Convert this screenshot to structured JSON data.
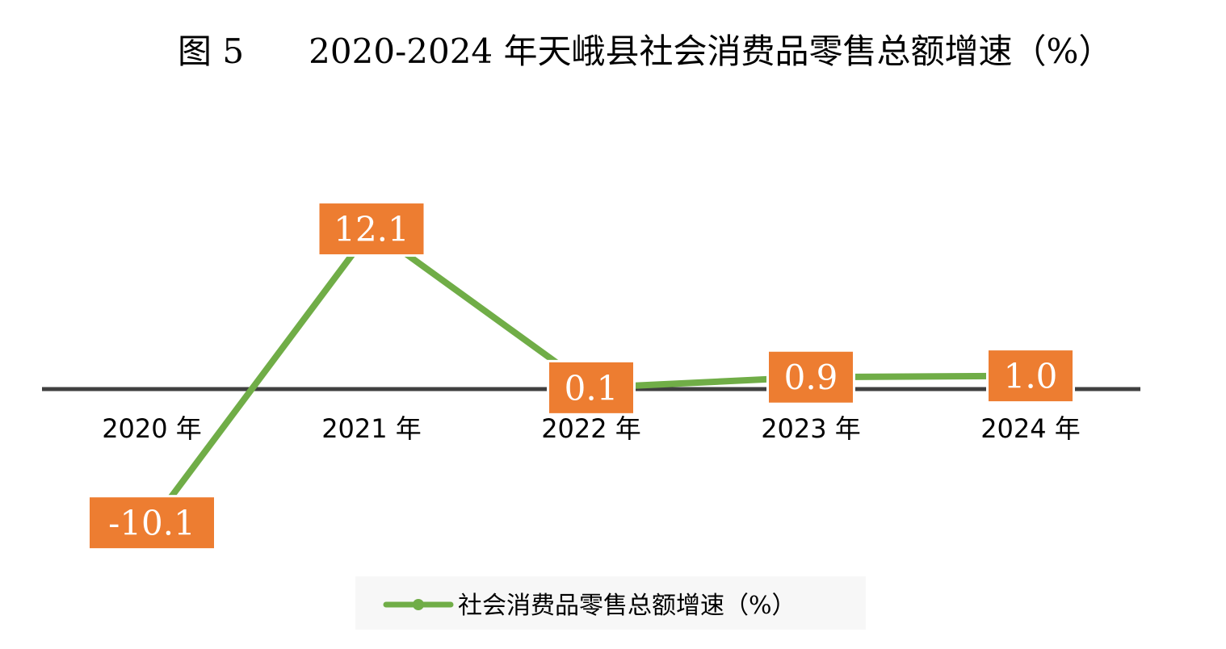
{
  "chart_data": {
    "type": "line",
    "title": "图 5      2020-2024 年天峨县社会消费品零售总额增速（%）",
    "categories": [
      "2020 年",
      "2021 年",
      "2022 年",
      "2023 年",
      "2024 年"
    ],
    "series": [
      {
        "name": "社会消费品零售总额增速（%）",
        "values": [
          -10.1,
          12.1,
          0.1,
          0.9,
          1.0
        ],
        "labels": [
          "-10.1",
          "12.1",
          "0.1",
          "0.9",
          "1.0"
        ]
      }
    ],
    "ylim": [
      -12,
      15
    ],
    "grid": false,
    "legend_position": "bottom-center",
    "colors": {
      "line": "#70AD47",
      "label_bg": "#ED7D31",
      "label_text": "#FFFFFF",
      "axis": "#404040",
      "legend_bg": "#F7F7F7"
    }
  }
}
